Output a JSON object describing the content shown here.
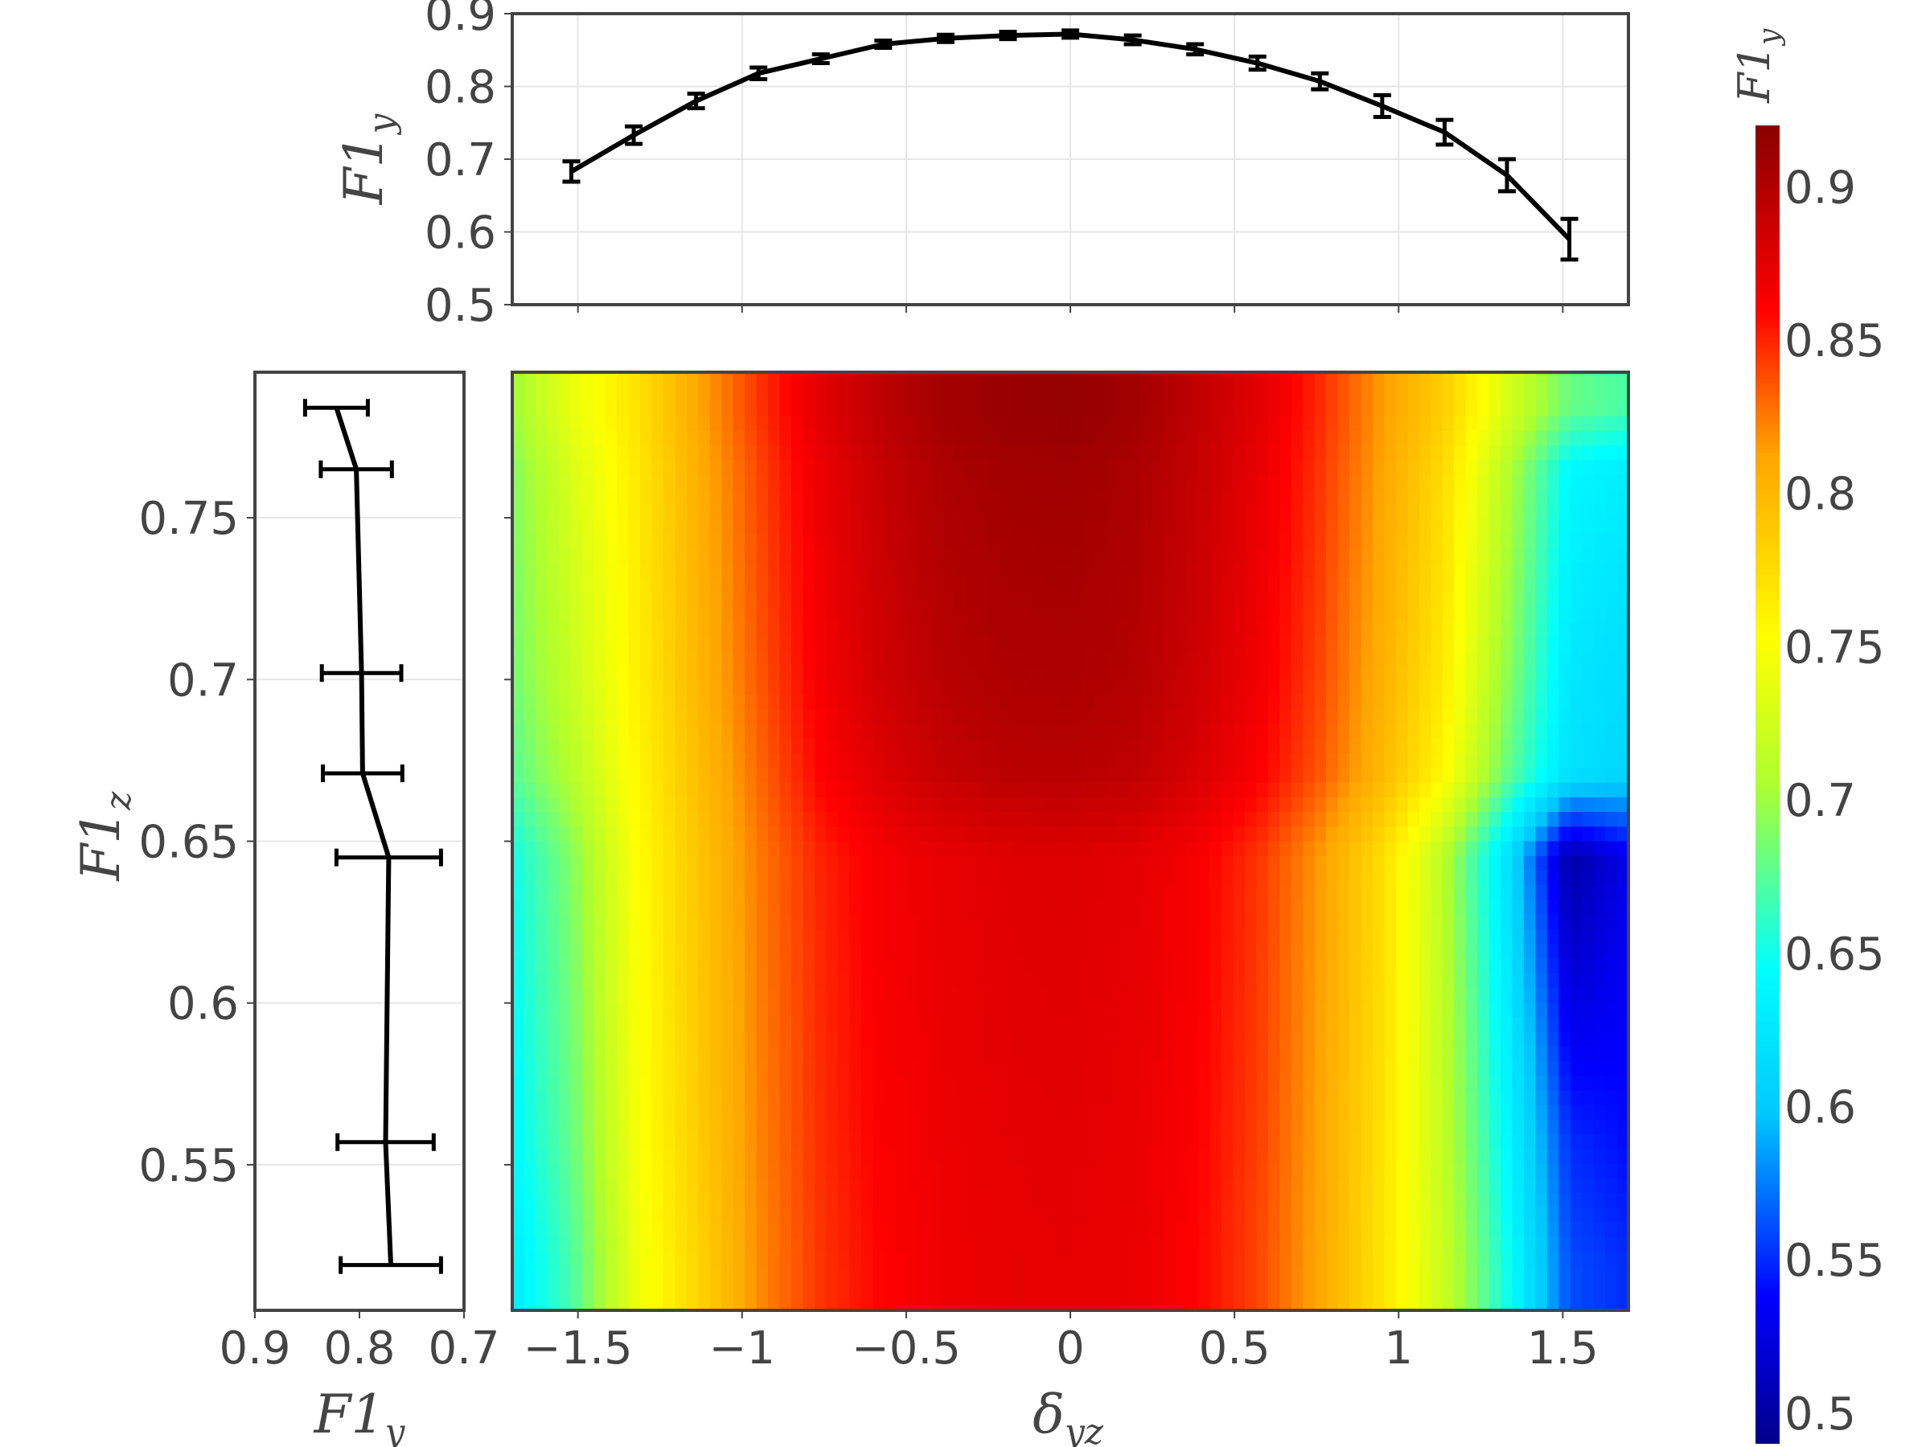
{
  "colors": {
    "colorscale": [
      [
        0.0,
        "#00008b"
      ],
      [
        0.11,
        "#0000ff"
      ],
      [
        0.25,
        "#00c8ff"
      ],
      [
        0.36,
        "#00ffff"
      ],
      [
        0.5,
        "#adff2f"
      ],
      [
        0.61,
        "#ffff00"
      ],
      [
        0.75,
        "#ffa500"
      ],
      [
        0.86,
        "#ff0000"
      ],
      [
        1.0,
        "#8b0000"
      ]
    ],
    "line": "#000000",
    "frame": "#444444",
    "grid": "#e6e6e6",
    "text": "#444444"
  },
  "chart_data": [
    {
      "id": "top-marginal",
      "type": "line",
      "x": [
        -1.52,
        -1.33,
        -1.14,
        -0.95,
        -0.76,
        -0.57,
        -0.38,
        -0.19,
        0.0,
        0.19,
        0.38,
        0.57,
        0.76,
        0.95,
        1.14,
        1.33,
        1.52
      ],
      "y": [
        0.683,
        0.733,
        0.78,
        0.818,
        0.838,
        0.858,
        0.866,
        0.87,
        0.872,
        0.864,
        0.851,
        0.832,
        0.807,
        0.773,
        0.737,
        0.678,
        0.59
      ],
      "error": [
        0.014,
        0.012,
        0.01,
        0.008,
        0.006,
        0.005,
        0.005,
        0.005,
        0.005,
        0.006,
        0.007,
        0.009,
        0.011,
        0.015,
        0.017,
        0.022,
        0.028
      ],
      "xlim": [
        -1.7,
        1.7
      ],
      "ylim": [
        0.5,
        0.9
      ],
      "yticks": [
        "0.5",
        "0.6",
        "0.7",
        "0.8",
        "0.9"
      ],
      "ylabel": "F1y",
      "grid": true
    },
    {
      "id": "left-marginal",
      "type": "line",
      "orientation": "horizontal",
      "y": [
        0.784,
        0.765,
        0.702,
        0.671,
        0.645,
        0.557,
        0.519
      ],
      "x": [
        0.822,
        0.803,
        0.798,
        0.797,
        0.772,
        0.775,
        0.77
      ],
      "error": [
        0.03,
        0.034,
        0.038,
        0.038,
        0.05,
        0.046,
        0.048
      ],
      "xlim": [
        0.9,
        0.7
      ],
      "ylim": [
        0.505,
        0.795
      ],
      "xticks": [
        "0.9",
        "0.8",
        "0.7"
      ],
      "yticks": [
        "0.55",
        "0.6",
        "0.65",
        "0.7",
        "0.75"
      ],
      "xlabel": "F1y",
      "ylabel": "F1z",
      "grid": true
    },
    {
      "id": "main-heatmap",
      "type": "heatmap",
      "x": [
        -1.7,
        -1.52,
        -1.33,
        -1.14,
        -0.95,
        -0.76,
        -0.57,
        -0.38,
        -0.19,
        0.0,
        0.19,
        0.38,
        0.57,
        0.76,
        0.95,
        1.14,
        1.33,
        1.52,
        1.7
      ],
      "y": [
        0.519,
        0.557,
        0.645,
        0.671,
        0.702,
        0.765,
        0.784,
        0.795
      ],
      "z": [
        [
          0.63,
          0.67,
          0.74,
          0.78,
          0.82,
          0.845,
          0.86,
          0.868,
          0.872,
          0.873,
          0.87,
          0.86,
          0.84,
          0.81,
          0.77,
          0.72,
          0.65,
          0.56,
          0.55
        ],
        [
          0.64,
          0.68,
          0.745,
          0.785,
          0.822,
          0.847,
          0.862,
          0.869,
          0.873,
          0.874,
          0.871,
          0.861,
          0.842,
          0.812,
          0.772,
          0.715,
          0.64,
          0.55,
          0.54
        ],
        [
          0.65,
          0.69,
          0.75,
          0.79,
          0.825,
          0.85,
          0.865,
          0.872,
          0.876,
          0.877,
          0.874,
          0.864,
          0.845,
          0.815,
          0.775,
          0.71,
          0.62,
          0.5,
          0.53
        ],
        [
          0.675,
          0.71,
          0.755,
          0.795,
          0.83,
          0.86,
          0.878,
          0.89,
          0.896,
          0.897,
          0.893,
          0.88,
          0.862,
          0.835,
          0.8,
          0.755,
          0.68,
          0.62,
          0.61
        ],
        [
          0.685,
          0.72,
          0.76,
          0.8,
          0.835,
          0.865,
          0.885,
          0.897,
          0.902,
          0.903,
          0.899,
          0.886,
          0.867,
          0.84,
          0.805,
          0.765,
          0.695,
          0.625,
          0.615
        ],
        [
          0.69,
          0.73,
          0.765,
          0.805,
          0.84,
          0.87,
          0.89,
          0.903,
          0.908,
          0.909,
          0.904,
          0.89,
          0.872,
          0.845,
          0.812,
          0.775,
          0.71,
          0.64,
          0.63
        ],
        [
          0.7,
          0.74,
          0.77,
          0.81,
          0.845,
          0.875,
          0.895,
          0.908,
          0.913,
          0.915,
          0.909,
          0.893,
          0.875,
          0.848,
          0.815,
          0.785,
          0.73,
          0.68,
          0.67
        ],
        [
          0.7,
          0.74,
          0.77,
          0.81,
          0.845,
          0.875,
          0.895,
          0.908,
          0.913,
          0.915,
          0.909,
          0.893,
          0.875,
          0.848,
          0.815,
          0.785,
          0.73,
          0.68,
          0.67
        ]
      ],
      "zlim": [
        0.49,
        0.92
      ],
      "xlim": [
        -1.7,
        1.7
      ],
      "ylim": [
        0.505,
        0.795
      ],
      "xticks": [
        "−1.5",
        "−1",
        "−0.5",
        "0",
        "0.5",
        "1",
        "1.5"
      ],
      "xlabel": "δyz"
    },
    {
      "id": "colorbar",
      "type": "colorbar",
      "title": "F1y",
      "range": [
        0.49,
        0.92
      ],
      "ticks": [
        "0.5",
        "0.55",
        "0.6",
        "0.65",
        "0.7",
        "0.75",
        "0.8",
        "0.85",
        "0.9"
      ]
    }
  ],
  "labels": {
    "top_ylabel_main": "F1",
    "top_ylabel_sub": "y",
    "left_xlabel_main": "F1",
    "left_xlabel_sub": "y",
    "left_ylabel_main": "F1",
    "left_ylabel_sub": "z",
    "main_xlabel_main": "δ",
    "main_xlabel_sub": "yz",
    "cb_title_main": "F1",
    "cb_title_sub": "y"
  }
}
